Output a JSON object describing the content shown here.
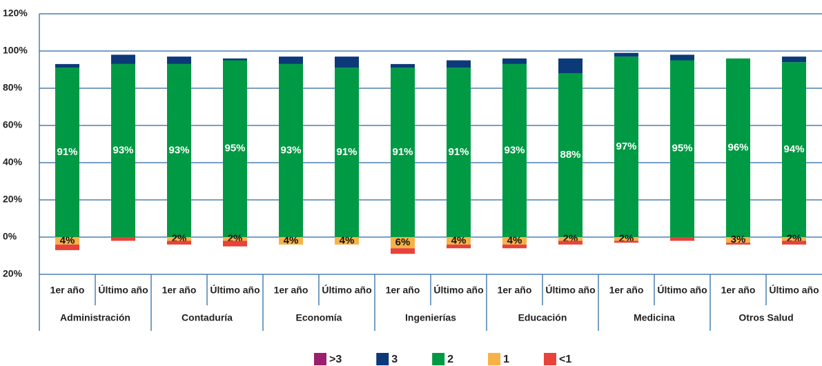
{
  "chart_data": {
    "type": "bar",
    "stacked": true,
    "groups": [
      "Administración",
      "Contaduría",
      "Economía",
      "Ingenierías",
      "Educación",
      "Medicina",
      "Otros Salud"
    ],
    "categories": [
      "1er año",
      "Último año",
      "1er año",
      "Último año",
      "1er año",
      "Último año",
      "1er año",
      "Último año",
      "1er año",
      "Último año",
      "1er año",
      "Último año",
      "1er año",
      "Último año"
    ],
    "series": [
      {
        "name": ">3",
        "color": "#9b1f6e",
        "values": [
          0,
          0,
          0,
          0,
          0,
          0,
          0,
          0,
          0,
          0,
          0,
          0,
          0,
          0
        ]
      },
      {
        "name": "3",
        "color": "#0c3a78",
        "values": [
          2,
          5,
          4,
          1,
          4,
          6,
          2,
          4,
          3,
          8,
          2,
          3,
          0,
          3
        ]
      },
      {
        "name": "2",
        "color": "#009a44",
        "values": [
          91,
          93,
          93,
          95,
          93,
          91,
          91,
          91,
          93,
          88,
          97,
          95,
          96,
          94
        ],
        "value_labels": [
          "91%",
          "93%",
          "93%",
          "95%",
          "93%",
          "91%",
          "91%",
          "91%",
          "93%",
          "88%",
          "97%",
          "95%",
          "96%",
          "94%"
        ]
      },
      {
        "name": "1",
        "color": "#f7b247",
        "values": [
          -4,
          0,
          -2,
          -2,
          -4,
          -4,
          -6,
          -4,
          -4,
          -2,
          -2,
          0,
          -3,
          -2
        ],
        "value_labels": [
          "4%",
          null,
          "2%",
          "2%",
          "4%",
          "4%",
          "6%",
          "4%",
          "4%",
          "2%",
          "2%",
          null,
          "3%",
          "2%"
        ]
      },
      {
        "name": "<1",
        "color": "#e8423a",
        "values": [
          -3,
          -2,
          -2,
          -3,
          0,
          0,
          -3,
          -2,
          -2,
          -2,
          -1,
          -2,
          -1,
          -2
        ]
      }
    ],
    "ylim": [
      -20,
      120
    ],
    "yticks": [
      {
        "value": 120,
        "label": "120%"
      },
      {
        "value": 100,
        "label": "100%"
      },
      {
        "value": 80,
        "label": "80%"
      },
      {
        "value": 60,
        "label": "60%"
      },
      {
        "value": 40,
        "label": "40%"
      },
      {
        "value": 20,
        "label": "20%"
      },
      {
        "value": 0,
        "label": "0%"
      },
      {
        "value": -20,
        "label": "20%"
      }
    ],
    "grid": true
  }
}
